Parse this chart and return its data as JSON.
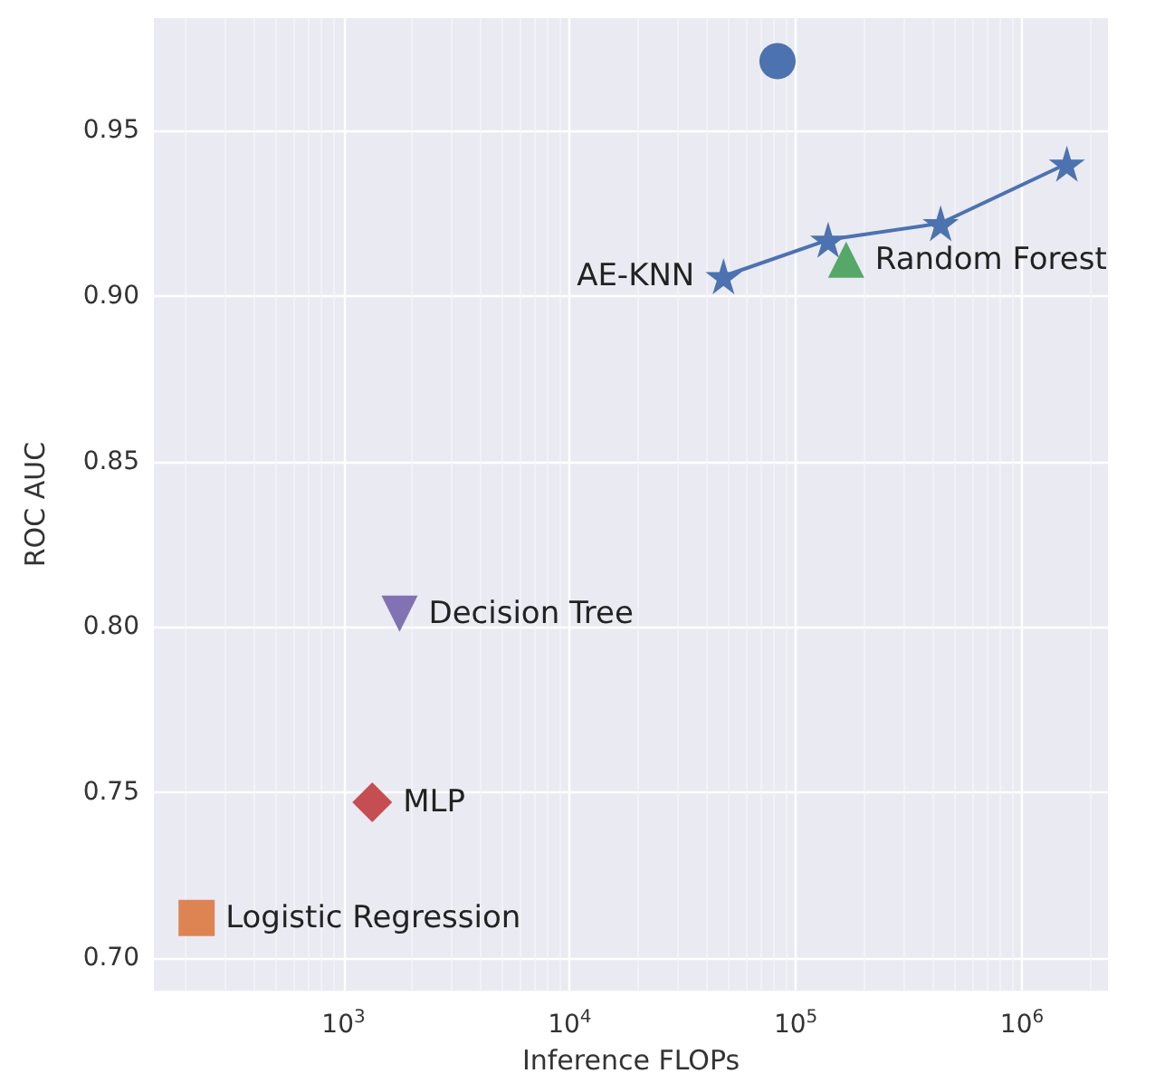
{
  "chart_data": {
    "type": "scatter",
    "xlabel": "Inference FLOPs",
    "ylabel": "ROC AUC",
    "log": "x",
    "grid": true,
    "xlim": [
      145,
      2400000
    ],
    "xticks": [
      {
        "value": 1000,
        "label": "10$^{3}$"
      },
      {
        "value": 10000,
        "label": "10$^{4}$"
      },
      {
        "value": 100000,
        "label": "10$^{5}$"
      },
      {
        "value": 1000000,
        "label": "10$^{6}$"
      }
    ],
    "ylim": [
      0.69,
      0.984
    ],
    "yticks": [
      {
        "value": 0.7,
        "label": "0.70"
      },
      {
        "value": 0.75,
        "label": "0.75"
      },
      {
        "value": 0.8,
        "label": "0.80"
      },
      {
        "value": 0.85,
        "label": "0.85"
      },
      {
        "value": 0.9,
        "label": "0.90"
      },
      {
        "value": 0.95,
        "label": "0.95"
      }
    ],
    "series": [
      {
        "name": "AE-KNN",
        "type": "line",
        "marker": "star",
        "color": "#4c72b0",
        "x": [
          47900,
          139000,
          437000,
          1580000
        ],
        "values": [
          0.906,
          0.917,
          0.922,
          0.94
        ]
      },
      {
        "marker": "circle",
        "color": "#4c72b0",
        "x": [
          83000
        ],
        "values": [
          0.971
        ]
      },
      {
        "name": "Random Forest",
        "marker": "triangle",
        "color": "#55a868",
        "x": [
          167000
        ],
        "values": [
          0.911
        ]
      },
      {
        "name": "Decision Tree",
        "marker": "triangle-down",
        "color": "#8172b3",
        "x": [
          1770
        ],
        "values": [
          0.804
        ]
      },
      {
        "name": "MLP",
        "marker": "diamond",
        "color": "#c44e52",
        "x": [
          1340
        ],
        "values": [
          0.747
        ]
      },
      {
        "name": "Logistic Regression",
        "marker": "square",
        "color": "#dd8452",
        "x": [
          224
        ],
        "values": [
          0.712
        ]
      }
    ]
  }
}
